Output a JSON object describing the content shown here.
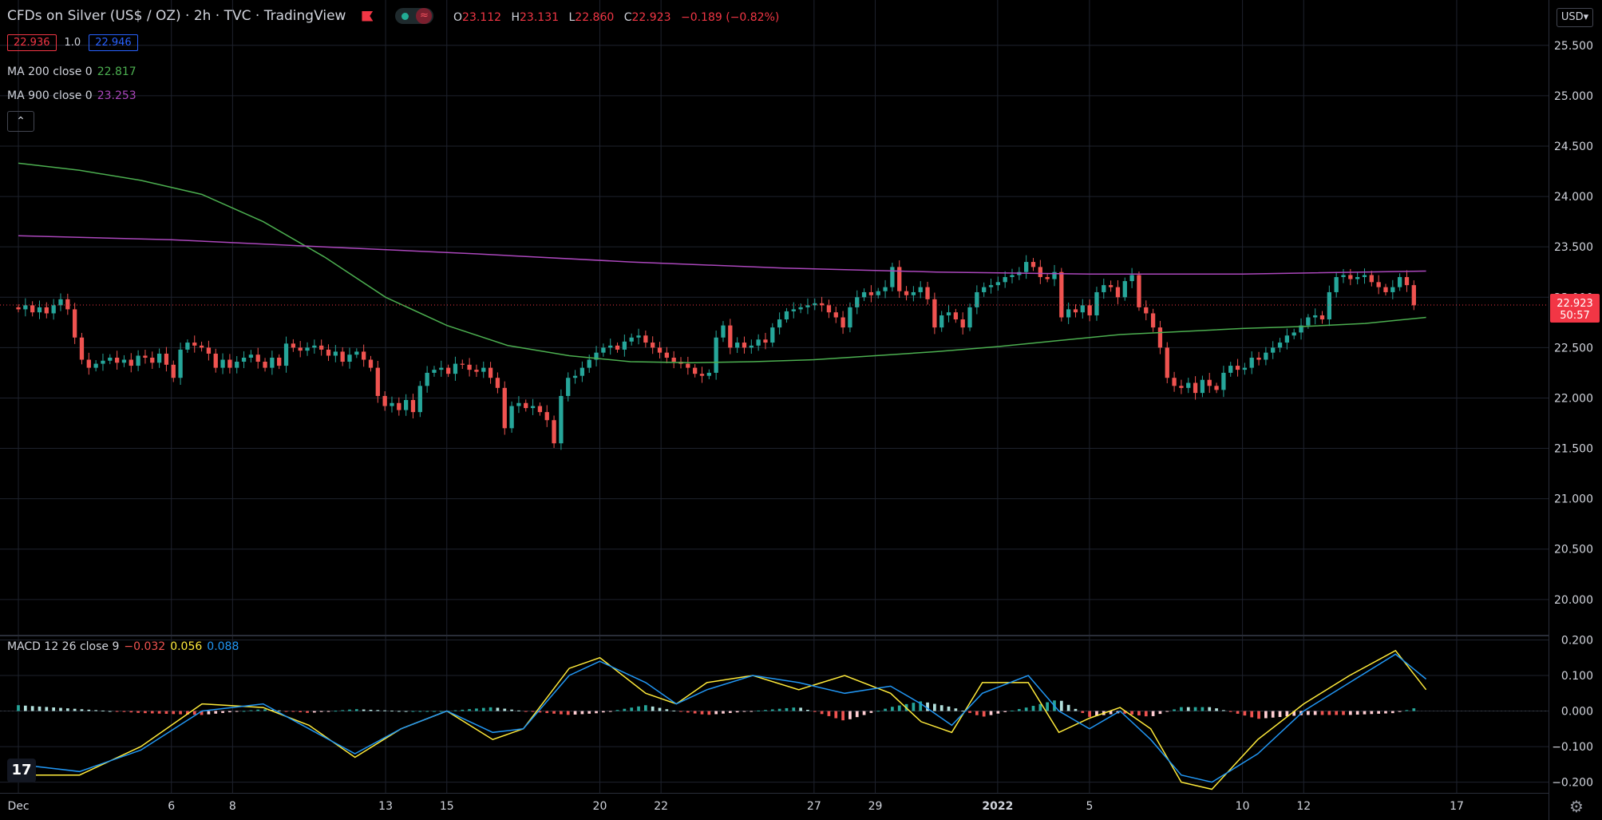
{
  "header": {
    "title": "CFDs on Silver (US$ / OZ) · 2h · TVC · TradingView",
    "ohlc": {
      "o_label": "O",
      "o": "23.112",
      "h_label": "H",
      "h": "23.131",
      "l_label": "L",
      "l": "22.860",
      "c_label": "C",
      "c": "22.923",
      "change": "−0.189 (−0.82%)"
    },
    "bid": "22.936",
    "spread": "1.0",
    "ask": "22.946",
    "currency": "USD",
    "collapse_icon": "chevron-up-icon"
  },
  "indicators": {
    "ma200": {
      "label": "MA 200 close 0",
      "value": "22.817",
      "color": "#4caf50"
    },
    "ma900": {
      "label": "MA 900 close 0",
      "value": "23.253",
      "color": "#ab47bc"
    },
    "macd": {
      "label": "MACD 12 26 close 9",
      "hist": "−0.032",
      "signal": "0.056",
      "macd": "0.088"
    }
  },
  "colors": {
    "up": "#26a69a",
    "down": "#ef5350",
    "grid": "#1e222d",
    "macd_line": "#2196f3",
    "signal_line": "#ffeb3b",
    "hist_up": "#26a69a",
    "hist_up_weak": "#b2dfdb",
    "hist_down": "#ef5350",
    "hist_down_weak": "#ffcdd2",
    "price_tag": "#f23645"
  },
  "chart_data": {
    "type": "candlestick",
    "price_axis": {
      "ticks": [
        "25.500",
        "25.000",
        "24.500",
        "24.000",
        "23.500",
        "23.000",
        "22.500",
        "22.000",
        "21.500",
        "21.000",
        "20.500",
        "20.000"
      ],
      "range": [
        19.65,
        25.95
      ]
    },
    "macd_axis": {
      "ticks": [
        "0.200",
        "0.100",
        "0.000",
        "−0.100",
        "−0.200"
      ],
      "range": [
        -0.23,
        0.21
      ]
    },
    "x_axis": {
      "labels": [
        "Dec",
        "6",
        "8",
        "13",
        "15",
        "20",
        "22",
        "27",
        "29",
        "2022",
        "5",
        "10",
        "12",
        "17"
      ],
      "label_days": [
        0,
        5,
        7,
        12,
        14,
        19,
        21,
        26,
        28,
        32,
        35,
        40,
        42,
        47
      ],
      "range_days": [
        -0.6,
        50
      ]
    },
    "last_price": {
      "value": "22.923",
      "countdown": "50:57"
    },
    "closes": [
      22.88,
      22.92,
      22.85,
      22.9,
      22.84,
      22.92,
      22.98,
      22.88,
      22.6,
      22.38,
      22.3,
      22.34,
      22.37,
      22.4,
      22.35,
      22.38,
      22.32,
      22.42,
      22.4,
      22.35,
      22.44,
      22.33,
      22.2,
      22.48,
      22.55,
      22.52,
      22.5,
      22.44,
      22.3,
      22.38,
      22.3,
      22.36,
      22.4,
      22.43,
      22.36,
      22.3,
      22.4,
      22.32,
      22.54,
      22.5,
      22.47,
      22.5,
      22.52,
      22.48,
      22.42,
      22.46,
      22.36,
      22.43,
      22.46,
      22.38,
      22.3,
      22.02,
      21.92,
      21.95,
      21.88,
      21.98,
      21.86,
      22.12,
      22.25,
      22.28,
      22.3,
      22.24,
      22.34,
      22.33,
      22.28,
      22.26,
      22.3,
      22.2,
      22.1,
      21.7,
      21.92,
      21.95,
      21.9,
      21.92,
      21.86,
      21.78,
      21.55,
      22.02,
      22.2,
      22.22,
      22.3,
      22.38,
      22.45,
      22.5,
      22.52,
      22.48,
      22.56,
      22.6,
      22.62,
      22.55,
      22.5,
      22.45,
      22.4,
      22.36,
      22.34,
      22.3,
      22.24,
      22.22,
      22.25,
      22.6,
      22.72,
      22.5,
      22.55,
      22.5,
      22.52,
      22.58,
      22.55,
      22.7,
      22.78,
      22.86,
      22.88,
      22.9,
      22.92,
      22.94,
      22.92,
      22.85,
      22.8,
      22.7,
      22.9,
      23.0,
      23.05,
      23.02,
      23.06,
      23.1,
      23.3,
      23.06,
      23.02,
      23.05,
      23.1,
      22.98,
      22.7,
      22.82,
      22.85,
      22.78,
      22.7,
      22.9,
      23.05,
      23.1,
      23.12,
      23.15,
      23.2,
      23.22,
      23.25,
      23.35,
      23.3,
      23.2,
      23.18,
      23.25,
      22.8,
      22.88,
      22.85,
      22.92,
      22.82,
      23.05,
      23.12,
      23.1,
      23.0,
      23.16,
      23.22,
      22.9,
      22.84,
      22.7,
      22.5,
      22.2,
      22.12,
      22.1,
      22.15,
      22.05,
      22.18,
      22.12,
      22.08,
      22.25,
      22.32,
      22.28,
      22.3,
      22.4,
      22.38,
      22.45,
      22.5,
      22.55,
      22.62,
      22.65,
      22.72,
      22.8,
      22.82,
      22.78,
      23.05,
      23.2,
      23.22,
      23.18,
      23.2,
      23.22,
      23.15,
      23.1,
      23.05,
      23.1,
      23.2,
      23.12,
      22.92
    ],
    "ma200": [
      [
        0,
        24.33
      ],
      [
        2,
        24.26
      ],
      [
        4,
        24.16
      ],
      [
        6,
        24.02
      ],
      [
        8,
        23.75
      ],
      [
        10,
        23.4
      ],
      [
        12,
        23.0
      ],
      [
        14,
        22.72
      ],
      [
        16,
        22.52
      ],
      [
        18,
        22.42
      ],
      [
        20,
        22.36
      ],
      [
        22,
        22.35
      ],
      [
        24,
        22.36
      ],
      [
        26,
        22.38
      ],
      [
        28,
        22.42
      ],
      [
        30,
        22.46
      ],
      [
        32,
        22.51
      ],
      [
        34,
        22.57
      ],
      [
        36,
        22.63
      ],
      [
        38,
        22.66
      ],
      [
        40,
        22.69
      ],
      [
        42,
        22.71
      ],
      [
        44,
        22.74
      ],
      [
        46,
        22.8
      ]
    ],
    "ma900": [
      [
        0,
        23.61
      ],
      [
        5,
        23.57
      ],
      [
        10,
        23.5
      ],
      [
        15,
        23.43
      ],
      [
        20,
        23.35
      ],
      [
        25,
        23.29
      ],
      [
        30,
        23.25
      ],
      [
        35,
        23.23
      ],
      [
        40,
        23.23
      ],
      [
        46,
        23.26
      ]
    ],
    "macd": [
      [
        0,
        -0.15
      ],
      [
        2,
        -0.17
      ],
      [
        4,
        -0.11
      ],
      [
        6,
        0.0
      ],
      [
        8,
        0.02
      ],
      [
        9.5,
        -0.05
      ],
      [
        11,
        -0.12
      ],
      [
        12.5,
        -0.05
      ],
      [
        14,
        0.0
      ],
      [
        15.5,
        -0.06
      ],
      [
        16.5,
        -0.05
      ],
      [
        18,
        0.1
      ],
      [
        19,
        0.14
      ],
      [
        20.5,
        0.08
      ],
      [
        21.5,
        0.02
      ],
      [
        22.5,
        0.06
      ],
      [
        24,
        0.1
      ],
      [
        25.5,
        0.08
      ],
      [
        27,
        0.05
      ],
      [
        28.5,
        0.07
      ],
      [
        29.5,
        0.02
      ],
      [
        30.5,
        -0.04
      ],
      [
        31.5,
        0.05
      ],
      [
        33,
        0.1
      ],
      [
        34,
        0.0
      ],
      [
        35,
        -0.05
      ],
      [
        36,
        0.0
      ],
      [
        37,
        -0.08
      ],
      [
        38,
        -0.18
      ],
      [
        39,
        -0.2
      ],
      [
        40.5,
        -0.12
      ],
      [
        42,
        0.0
      ],
      [
        43.5,
        0.08
      ],
      [
        45,
        0.16
      ],
      [
        46,
        0.09
      ]
    ],
    "signal": [
      [
        0,
        -0.18
      ],
      [
        2,
        -0.18
      ],
      [
        4,
        -0.1
      ],
      [
        6,
        0.02
      ],
      [
        8,
        0.01
      ],
      [
        9.5,
        -0.04
      ],
      [
        11,
        -0.13
      ],
      [
        12.5,
        -0.05
      ],
      [
        14,
        0.0
      ],
      [
        15.5,
        -0.08
      ],
      [
        16.5,
        -0.05
      ],
      [
        18,
        0.12
      ],
      [
        19,
        0.15
      ],
      [
        20.5,
        0.05
      ],
      [
        21.5,
        0.02
      ],
      [
        22.5,
        0.08
      ],
      [
        24,
        0.1
      ],
      [
        25.5,
        0.06
      ],
      [
        27,
        0.1
      ],
      [
        28.5,
        0.05
      ],
      [
        29.5,
        -0.03
      ],
      [
        30.5,
        -0.06
      ],
      [
        31.5,
        0.08
      ],
      [
        33,
        0.08
      ],
      [
        34,
        -0.06
      ],
      [
        35,
        -0.02
      ],
      [
        36,
        0.01
      ],
      [
        37,
        -0.05
      ],
      [
        38,
        -0.2
      ],
      [
        39,
        -0.22
      ],
      [
        40.5,
        -0.08
      ],
      [
        42,
        0.02
      ],
      [
        43.5,
        0.1
      ],
      [
        45,
        0.17
      ],
      [
        46,
        0.06
      ]
    ]
  }
}
